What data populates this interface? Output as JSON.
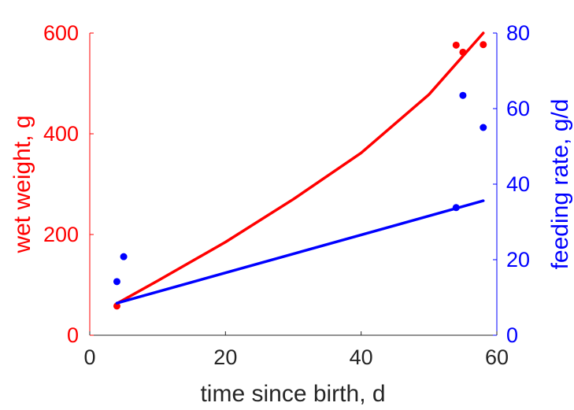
{
  "chart_data": {
    "type": "line",
    "x": {
      "label": "time since birth, d",
      "lim": [
        0,
        60
      ],
      "ticks": [
        0,
        20,
        40,
        60
      ]
    },
    "y_left": {
      "label": "wet weight, g",
      "color": "#ff0000",
      "lim": [
        0,
        600
      ],
      "ticks": [
        0,
        200,
        400,
        600
      ]
    },
    "y_right": {
      "label": "feeding rate, g/d",
      "color": "#0000ff",
      "lim": [
        0,
        80
      ],
      "ticks": [
        0,
        20,
        40,
        60,
        80
      ]
    },
    "series": [
      {
        "axis": "left",
        "kind": "points",
        "color": "#ff0000",
        "x": [
          4,
          54,
          55,
          58
        ],
        "y": [
          58,
          576,
          562,
          577
        ]
      },
      {
        "axis": "left",
        "kind": "curve",
        "color": "#ff0000",
        "x": [
          4,
          10,
          20,
          30,
          40,
          50,
          58
        ],
        "y": [
          63,
          108,
          185,
          270,
          362,
          478,
          600
        ]
      },
      {
        "axis": "right",
        "kind": "points",
        "color": "#0000ff",
        "x": [
          4,
          5,
          54,
          55,
          58
        ],
        "y": [
          14.2,
          20.8,
          33.8,
          63.5,
          55.0
        ]
      },
      {
        "axis": "right",
        "kind": "curve",
        "color": "#0000ff",
        "x": [
          4,
          58
        ],
        "y": [
          8.5,
          35.6
        ]
      }
    ]
  }
}
